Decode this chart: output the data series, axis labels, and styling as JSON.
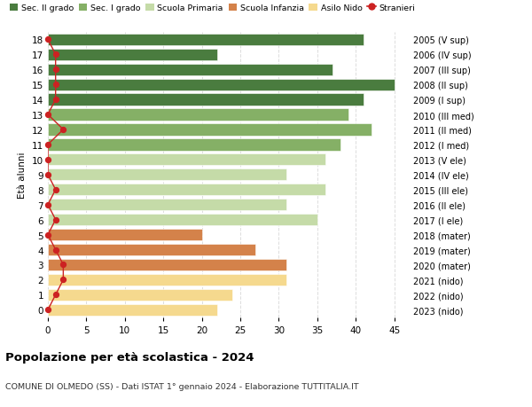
{
  "ages": [
    0,
    1,
    2,
    3,
    4,
    5,
    6,
    7,
    8,
    9,
    10,
    11,
    12,
    13,
    14,
    15,
    16,
    17,
    18
  ],
  "values": [
    22,
    24,
    31,
    31,
    27,
    20,
    35,
    31,
    36,
    31,
    36,
    38,
    42,
    39,
    41,
    45,
    37,
    22,
    41
  ],
  "stranieri": [
    0,
    1,
    2,
    2,
    1,
    0,
    1,
    0,
    1,
    0,
    0,
    0,
    2,
    0,
    1,
    1,
    1,
    1,
    0
  ],
  "right_labels": [
    "2023 (nido)",
    "2022 (nido)",
    "2021 (nido)",
    "2020 (mater)",
    "2019 (mater)",
    "2018 (mater)",
    "2017 (I ele)",
    "2016 (II ele)",
    "2015 (III ele)",
    "2014 (IV ele)",
    "2013 (V ele)",
    "2012 (I med)",
    "2011 (II med)",
    "2010 (III med)",
    "2009 (I sup)",
    "2008 (II sup)",
    "2007 (III sup)",
    "2006 (IV sup)",
    "2005 (V sup)"
  ],
  "colors": {
    "sec2": "#4a7c3f",
    "sec1": "#85b066",
    "primaria": "#c5dba8",
    "infanzia": "#d4824a",
    "nido": "#f5d98e"
  },
  "bar_colors": [
    "nido",
    "nido",
    "nido",
    "infanzia",
    "infanzia",
    "infanzia",
    "primaria",
    "primaria",
    "primaria",
    "primaria",
    "primaria",
    "sec1",
    "sec1",
    "sec1",
    "sec2",
    "sec2",
    "sec2",
    "sec2",
    "sec2"
  ],
  "legend_labels": [
    "Sec. II grado",
    "Sec. I grado",
    "Scuola Primaria",
    "Scuola Infanzia",
    "Asilo Nido",
    "Stranieri"
  ],
  "legend_colors": [
    "#4a7c3f",
    "#85b066",
    "#c5dba8",
    "#d4824a",
    "#f5d98e",
    "#cc2222"
  ],
  "title1": "Popolazione per età scolastica - 2024",
  "title2": "COMUNE DI OLMEDO (SS) - Dati ISTAT 1° gennaio 2024 - Elaborazione TUTTITALIA.IT",
  "ylabel_left": "Età alunni",
  "xlim": [
    0,
    47
  ],
  "xticks": [
    0,
    5,
    10,
    15,
    20,
    25,
    30,
    35,
    40,
    45
  ],
  "stranieri_color": "#cc2222",
  "bg_color": "#ffffff",
  "grid_color": "#dddddd"
}
